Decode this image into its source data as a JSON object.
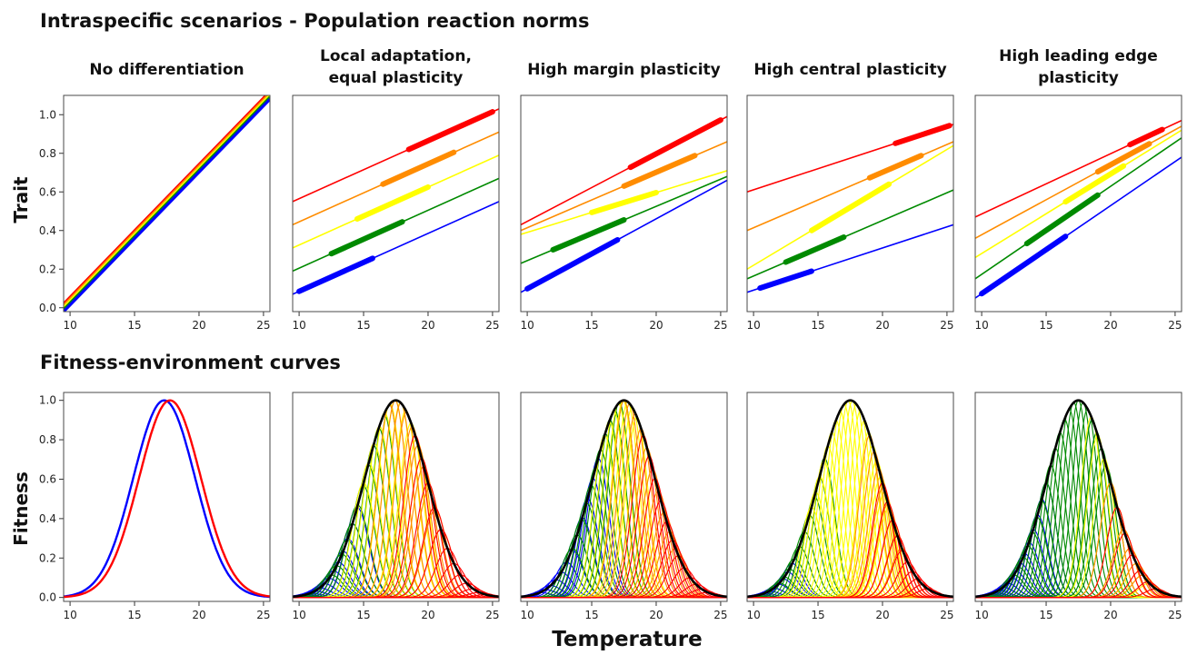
{
  "figure": {
    "top_heading": "Intraspecific scenarios - Population reaction norms",
    "bottom_heading": "Fitness-environment curves",
    "top_ylabel": "Trait",
    "bottom_ylabel": "Fitness",
    "xlabel": "Temperature"
  },
  "palette": {
    "red": "#ff0000",
    "orange": "#ff8c00",
    "yellow": "#ffff00",
    "green": "#008a00",
    "blue": "#0000ff",
    "envelope": "#000000"
  },
  "chart_data": [
    {
      "type": "line",
      "title_lines": [
        "No differentiation"
      ],
      "xlim": [
        9.5,
        25.5
      ],
      "ylim": [
        -0.02,
        1.1
      ],
      "xticks": [
        10,
        15,
        20,
        25
      ],
      "yticks": [
        0.0,
        0.2,
        0.4,
        0.6,
        0.8,
        1.0
      ],
      "series": [
        {
          "color": "red",
          "x": [
            9.5,
            25.5
          ],
          "y": [
            0.02,
            1.12
          ],
          "thick": []
        },
        {
          "color": "orange",
          "x": [
            9.5,
            25.5
          ],
          "y": [
            0.01,
            1.11
          ],
          "thick": []
        },
        {
          "color": "yellow",
          "x": [
            9.5,
            25.5
          ],
          "y": [
            0.0,
            1.1
          ],
          "thick": []
        },
        {
          "color": "green",
          "x": [
            9.5,
            25.5
          ],
          "y": [
            -0.01,
            1.09
          ],
          "thick": []
        },
        {
          "color": "blue",
          "x": [
            9.5,
            25.5
          ],
          "y": [
            -0.02,
            1.08
          ],
          "thick": []
        }
      ]
    },
    {
      "type": "line",
      "title_lines": [
        "Local adaptation,",
        "equal plasticity"
      ],
      "xlim": [
        9.5,
        25.5
      ],
      "ylim": [
        -0.02,
        1.1
      ],
      "xticks": [
        10,
        15,
        20,
        25
      ],
      "yticks": [
        0.0,
        0.2,
        0.4,
        0.6,
        0.8,
        1.0
      ],
      "series": [
        {
          "color": "red",
          "x": [
            9.5,
            25.5
          ],
          "y": [
            0.55,
            1.03
          ],
          "thick": [
            18.5,
            25.0
          ]
        },
        {
          "color": "orange",
          "x": [
            9.5,
            25.5
          ],
          "y": [
            0.43,
            0.91
          ],
          "thick": [
            16.5,
            22.0
          ]
        },
        {
          "color": "yellow",
          "x": [
            9.5,
            25.5
          ],
          "y": [
            0.31,
            0.79
          ],
          "thick": [
            14.5,
            20.0
          ]
        },
        {
          "color": "green",
          "x": [
            9.5,
            25.5
          ],
          "y": [
            0.19,
            0.67
          ],
          "thick": [
            12.5,
            18.0
          ]
        },
        {
          "color": "blue",
          "x": [
            9.5,
            25.5
          ],
          "y": [
            0.07,
            0.55
          ],
          "thick": [
            10.0,
            15.7
          ]
        }
      ]
    },
    {
      "type": "line",
      "title_lines": [
        "High margin plasticity"
      ],
      "xlim": [
        9.5,
        25.5
      ],
      "ylim": [
        -0.02,
        1.1
      ],
      "xticks": [
        10,
        15,
        20,
        25
      ],
      "yticks": [
        0.0,
        0.2,
        0.4,
        0.6,
        0.8,
        1.0
      ],
      "series": [
        {
          "color": "red",
          "x": [
            9.5,
            25.5
          ],
          "y": [
            0.43,
            0.99
          ],
          "thick": [
            18.0,
            25.0
          ]
        },
        {
          "color": "orange",
          "x": [
            9.5,
            25.5
          ],
          "y": [
            0.4,
            0.86
          ],
          "thick": [
            17.5,
            23.0
          ]
        },
        {
          "color": "yellow",
          "x": [
            9.5,
            25.5
          ],
          "y": [
            0.38,
            0.71
          ],
          "thick": [
            15.0,
            20.0
          ]
        },
        {
          "color": "green",
          "x": [
            9.5,
            25.5
          ],
          "y": [
            0.23,
            0.68
          ],
          "thick": [
            12.0,
            17.5
          ]
        },
        {
          "color": "blue",
          "x": [
            9.5,
            25.5
          ],
          "y": [
            0.08,
            0.66
          ],
          "thick": [
            10.0,
            17.0
          ]
        }
      ]
    },
    {
      "type": "line",
      "title_lines": [
        "High central plasticity"
      ],
      "xlim": [
        9.5,
        25.5
      ],
      "ylim": [
        -0.02,
        1.1
      ],
      "xticks": [
        10,
        15,
        20,
        25
      ],
      "yticks": [
        0.0,
        0.2,
        0.4,
        0.6,
        0.8,
        1.0
      ],
      "series": [
        {
          "color": "red",
          "x": [
            9.5,
            25.5
          ],
          "y": [
            0.6,
            0.95
          ],
          "thick": [
            21.0,
            25.2
          ]
        },
        {
          "color": "orange",
          "x": [
            9.5,
            25.5
          ],
          "y": [
            0.4,
            0.86
          ],
          "thick": [
            19.0,
            23.0
          ]
        },
        {
          "color": "yellow",
          "x": [
            9.5,
            25.5
          ],
          "y": [
            0.2,
            0.84
          ],
          "thick": [
            14.5,
            20.5
          ]
        },
        {
          "color": "green",
          "x": [
            9.5,
            25.5
          ],
          "y": [
            0.15,
            0.61
          ],
          "thick": [
            12.5,
            17.0
          ]
        },
        {
          "color": "blue",
          "x": [
            9.5,
            25.5
          ],
          "y": [
            0.08,
            0.43
          ],
          "thick": [
            10.5,
            14.5
          ]
        }
      ]
    },
    {
      "type": "line",
      "title_lines": [
        "High leading edge",
        "plasticity"
      ],
      "xlim": [
        9.5,
        25.5
      ],
      "ylim": [
        -0.02,
        1.1
      ],
      "xticks": [
        10,
        15,
        20,
        25
      ],
      "yticks": [
        0.0,
        0.2,
        0.4,
        0.6,
        0.8,
        1.0
      ],
      "series": [
        {
          "color": "red",
          "x": [
            9.5,
            25.5
          ],
          "y": [
            0.47,
            0.97
          ],
          "thick": [
            21.5,
            24.0
          ]
        },
        {
          "color": "orange",
          "x": [
            9.5,
            25.5
          ],
          "y": [
            0.36,
            0.94
          ],
          "thick": [
            19.0,
            23.0
          ]
        },
        {
          "color": "yellow",
          "x": [
            9.5,
            25.5
          ],
          "y": [
            0.26,
            0.92
          ],
          "thick": [
            16.5,
            21.0
          ]
        },
        {
          "color": "green",
          "x": [
            9.5,
            25.5
          ],
          "y": [
            0.15,
            0.88
          ],
          "thick": [
            13.5,
            19.0
          ]
        },
        {
          "color": "blue",
          "x": [
            9.5,
            25.5
          ],
          "y": [
            0.05,
            0.78
          ],
          "thick": [
            10.0,
            16.5
          ]
        }
      ]
    },
    {
      "type": "line",
      "xlim": [
        9.5,
        25.5
      ],
      "ylim": [
        -0.02,
        1.04
      ],
      "xticks": [
        10,
        15,
        20,
        25
      ],
      "yticks": [
        0.0,
        0.2,
        0.4,
        0.6,
        0.8,
        1.0
      ],
      "envelope": {
        "peak": 17.5,
        "width": 2.4,
        "show": false
      },
      "families": [
        {
          "color": "blue",
          "centers_from": 17.3,
          "centers_to": 17.3,
          "count": 1,
          "width": 2.4,
          "peak_mode": "flat"
        },
        {
          "color": "red",
          "centers_from": 17.75,
          "centers_to": 17.75,
          "count": 1,
          "width": 2.4,
          "peak_mode": "flat"
        }
      ]
    },
    {
      "type": "line",
      "xlim": [
        9.5,
        25.5
      ],
      "ylim": [
        -0.02,
        1.04
      ],
      "xticks": [
        10,
        15,
        20,
        25
      ],
      "yticks": [
        0.0,
        0.2,
        0.4,
        0.6,
        0.8,
        1.0
      ],
      "envelope": {
        "peak": 17.5,
        "width": 2.4,
        "show": true
      },
      "families": [
        {
          "color": "blue",
          "centers_from": 10.5,
          "centers_to": 14.5,
          "count": 12,
          "width": 0.9,
          "peak_mode": "envelope"
        },
        {
          "color": "green",
          "centers_from": 12.5,
          "centers_to": 17.0,
          "count": 12,
          "width": 0.9,
          "peak_mode": "envelope"
        },
        {
          "color": "yellow",
          "centers_from": 15.0,
          "centers_to": 19.5,
          "count": 12,
          "width": 0.9,
          "peak_mode": "envelope"
        },
        {
          "color": "orange",
          "centers_from": 17.0,
          "centers_to": 21.0,
          "count": 10,
          "width": 0.9,
          "peak_mode": "envelope"
        },
        {
          "color": "red",
          "centers_from": 19.0,
          "centers_to": 24.5,
          "count": 12,
          "width": 0.9,
          "peak_mode": "envelope"
        }
      ]
    },
    {
      "type": "line",
      "xlim": [
        9.5,
        25.5
      ],
      "ylim": [
        -0.02,
        1.04
      ],
      "xticks": [
        10,
        15,
        20,
        25
      ],
      "yticks": [
        0.0,
        0.2,
        0.4,
        0.6,
        0.8,
        1.0
      ],
      "envelope": {
        "peak": 17.5,
        "width": 2.4,
        "show": true
      },
      "families": [
        {
          "color": "blue",
          "centers_from": 11.0,
          "centers_to": 15.5,
          "count": 12,
          "width": 0.85,
          "peak_mode": "envelope"
        },
        {
          "color": "green",
          "centers_from": 13.5,
          "centers_to": 17.5,
          "count": 12,
          "width": 0.85,
          "peak_mode": "envelope"
        },
        {
          "color": "yellow",
          "centers_from": 16.0,
          "centers_to": 18.5,
          "count": 8,
          "width": 0.85,
          "peak_mode": "envelope"
        },
        {
          "color": "orange",
          "centers_from": 17.5,
          "centers_to": 21.5,
          "count": 10,
          "width": 0.85,
          "peak_mode": "envelope"
        },
        {
          "color": "red",
          "centers_from": 19.0,
          "centers_to": 24.0,
          "count": 12,
          "width": 0.85,
          "peak_mode": "envelope"
        }
      ]
    },
    {
      "type": "line",
      "xlim": [
        9.5,
        25.5
      ],
      "ylim": [
        -0.02,
        1.04
      ],
      "xticks": [
        10,
        15,
        20,
        25
      ],
      "yticks": [
        0.0,
        0.2,
        0.4,
        0.6,
        0.8,
        1.0
      ],
      "envelope": {
        "peak": 17.5,
        "width": 2.4,
        "show": true
      },
      "families": [
        {
          "color": "blue",
          "centers_from": 10.5,
          "centers_to": 13.0,
          "count": 8,
          "width": 0.8,
          "peak_mode": "envelope"
        },
        {
          "color": "green",
          "centers_from": 12.0,
          "centers_to": 15.5,
          "count": 10,
          "width": 0.8,
          "peak_mode": "envelope"
        },
        {
          "color": "yellow",
          "centers_from": 14.5,
          "centers_to": 20.5,
          "count": 20,
          "width": 0.8,
          "peak_mode": "envelope"
        },
        {
          "color": "orange",
          "centers_from": 19.0,
          "centers_to": 21.5,
          "count": 8,
          "width": 0.8,
          "peak_mode": "envelope"
        },
        {
          "color": "red",
          "centers_from": 20.0,
          "centers_to": 23.5,
          "count": 10,
          "width": 0.8,
          "peak_mode": "envelope"
        }
      ]
    },
    {
      "type": "line",
      "xlim": [
        9.5,
        25.5
      ],
      "ylim": [
        -0.02,
        1.04
      ],
      "xticks": [
        10,
        15,
        20,
        25
      ],
      "yticks": [
        0.0,
        0.2,
        0.4,
        0.6,
        0.8,
        1.0
      ],
      "envelope": {
        "peak": 17.5,
        "width": 2.4,
        "show": true
      },
      "families": [
        {
          "color": "blue",
          "centers_from": 10.0,
          "centers_to": 15.0,
          "count": 16,
          "width": 0.8,
          "peak_mode": "envelope"
        },
        {
          "color": "green",
          "centers_from": 12.5,
          "centers_to": 20.0,
          "count": 22,
          "width": 0.8,
          "peak_mode": "envelope"
        },
        {
          "color": "yellow",
          "centers_from": 18.5,
          "centers_to": 23.0,
          "count": 10,
          "width": 0.8,
          "peak_mode": "envelope"
        },
        {
          "color": "orange",
          "centers_from": 20.0,
          "centers_to": 22.5,
          "count": 6,
          "width": 0.8,
          "peak_mode": "envelope"
        },
        {
          "color": "red",
          "centers_from": 20.5,
          "centers_to": 23.5,
          "count": 6,
          "width": 0.8,
          "peak_mode": "envelope"
        }
      ]
    }
  ]
}
